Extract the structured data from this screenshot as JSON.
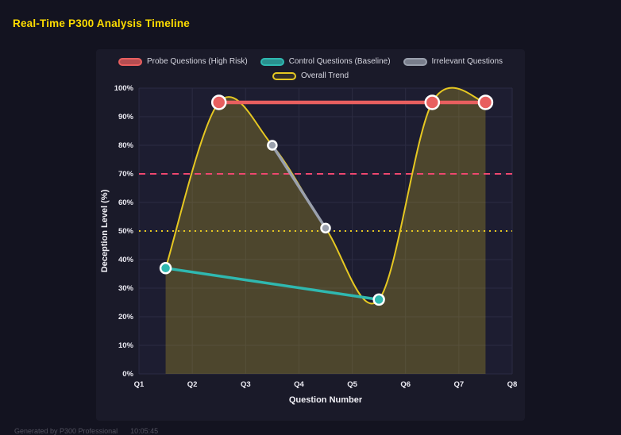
{
  "header": {
    "title": "Real-Time P300 Analysis Timeline"
  },
  "footer": {
    "generated": "Generated by P300 Professional",
    "time": "10:05:45"
  },
  "colors": {
    "page_bg": "#131320",
    "panel_bg": "#1a1a29",
    "plot_bg": "#1d1d31",
    "grid": "#2b2b42",
    "title_text": "#ffdd00",
    "tick_text": "#ecebf3",
    "legend_text": "#d6d6e0",
    "marker_border": "#ffffff",
    "footer_text": "#52525f"
  },
  "chart_data": {
    "type": "line",
    "title": "Real-Time P300 Analysis Timeline",
    "xlabel": "Question Number",
    "ylabel": "Deception Level (%)",
    "xlim": [
      1,
      8
    ],
    "ylim": [
      0,
      100
    ],
    "x_ticks": [
      "Q1",
      "Q2",
      "Q3",
      "Q4",
      "Q5",
      "Q6",
      "Q7",
      "Q8"
    ],
    "y_ticks": [
      "0%",
      "10%",
      "20%",
      "30%",
      "40%",
      "50%",
      "60%",
      "70%",
      "80%",
      "90%",
      "100%"
    ],
    "grid": true,
    "legend_position": "top",
    "reference_lines": [
      {
        "name": "high-risk-threshold",
        "value": 70,
        "color": "#ef476f",
        "dash": "8 6",
        "width": 2
      },
      {
        "name": "baseline-threshold",
        "value": 50,
        "color": "#e6c822",
        "dash": "2 5",
        "width": 2
      }
    ],
    "series": [
      {
        "name": "Probe Questions (High Risk)",
        "color": "#e85f5f",
        "swatch_fill": "rgba(232,95,95,0.75)",
        "points": [
          [
            2.5,
            95
          ],
          [
            6.5,
            95
          ],
          [
            7.5,
            95
          ]
        ],
        "line_width": 4.5,
        "marker_radius": 8.5,
        "smooth": false,
        "area": false
      },
      {
        "name": "Control Questions (Baseline)",
        "color": "#2fb8b0",
        "swatch_fill": "rgba(47,184,176,0.75)",
        "points": [
          [
            1.5,
            37
          ],
          [
            5.5,
            26
          ]
        ],
        "line_width": 3.5,
        "marker_radius": 6.5,
        "smooth": false,
        "area": false
      },
      {
        "name": "Irrelevant Questions",
        "color": "#9aa0ad",
        "swatch_fill": "rgba(154,160,173,0.75)",
        "points": [
          [
            3.5,
            80
          ],
          [
            4.5,
            51
          ]
        ],
        "line_width": 3.5,
        "marker_radius": 5.5,
        "smooth": false,
        "area": false
      },
      {
        "name": "Overall Trend",
        "color": "#e6c822",
        "swatch_fill": "rgba(230,200,34,0.12)",
        "points": [
          [
            1.5,
            37
          ],
          [
            2.5,
            95
          ],
          [
            3.5,
            80
          ],
          [
            4.5,
            51
          ],
          [
            5.5,
            26
          ],
          [
            6.5,
            95
          ],
          [
            7.5,
            95
          ]
        ],
        "line_width": 2,
        "marker_radius": 0,
        "smooth": true,
        "area": true,
        "area_opacity": 0.24
      }
    ]
  }
}
